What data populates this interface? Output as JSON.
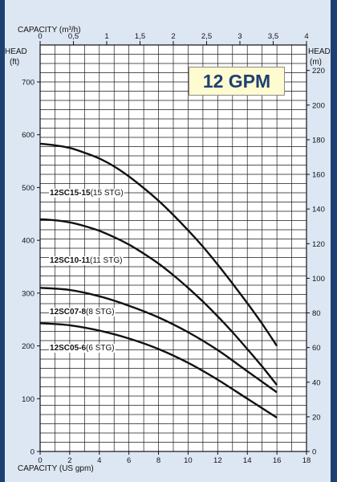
{
  "badge": "12 GPM",
  "chart_data": {
    "type": "line",
    "top_axis": {
      "label": "CAPACITY (m³/h)",
      "ticks": [
        "0",
        "0,5",
        "1",
        "1,5",
        "2",
        "2,5",
        "3",
        "3,5",
        "4"
      ],
      "range": [
        0,
        4
      ]
    },
    "x_axis": {
      "label": "CAPACITY (US gpm)",
      "ticks": [
        "0",
        "2",
        "4",
        "6",
        "8",
        "10",
        "12",
        "14",
        "16",
        "18"
      ],
      "range": [
        0,
        18
      ]
    },
    "left_axis": {
      "label_line1": "HEAD",
      "label_line2": "(ft)",
      "ticks": [
        "0",
        "100",
        "200",
        "300",
        "400",
        "500",
        "600",
        "700"
      ],
      "range": [
        0,
        770
      ]
    },
    "right_axis": {
      "label_line1": "HEAD",
      "label_line2": "(m)",
      "ticks": [
        "0",
        "20",
        "40",
        "60",
        "80",
        "100",
        "120",
        "140",
        "160",
        "180",
        "200",
        "220"
      ],
      "range": [
        0,
        234.7
      ]
    },
    "grid": true,
    "series": [
      {
        "name": "12SC15-15",
        "stages": "(15 STG)",
        "x": [
          0,
          1,
          2,
          3,
          4,
          5,
          6,
          7,
          8,
          9,
          10,
          11,
          12,
          13,
          14,
          15,
          16
        ],
        "y": [
          583,
          580,
          575,
          566,
          555,
          540,
          521,
          499,
          475,
          448,
          419,
          388,
          354,
          318,
          281,
          242,
          200
        ]
      },
      {
        "name": "12SC10-11",
        "stages": "(11 STG)",
        "x": [
          0,
          1,
          2,
          3,
          4,
          5,
          6,
          7,
          8,
          9,
          10,
          11,
          12,
          13,
          14,
          15,
          16
        ],
        "y": [
          440,
          438,
          434,
          427,
          418,
          406,
          392,
          375,
          356,
          334,
          310,
          284,
          256,
          226,
          194,
          161,
          126
        ]
      },
      {
        "name": "12SC07-8",
        "stages": "(8 STG)",
        "x": [
          0,
          2,
          4,
          6,
          8,
          10,
          12,
          14,
          16
        ],
        "y": [
          310,
          306,
          294,
          276,
          254,
          226,
          192,
          152,
          112
        ]
      },
      {
        "name": "12SC05-6",
        "stages": "(6 STG)",
        "x": [
          0,
          2,
          4,
          6,
          8,
          10,
          12,
          14,
          16
        ],
        "y": [
          243,
          239,
          229,
          214,
          194,
          168,
          136,
          100,
          64
        ]
      }
    ]
  }
}
